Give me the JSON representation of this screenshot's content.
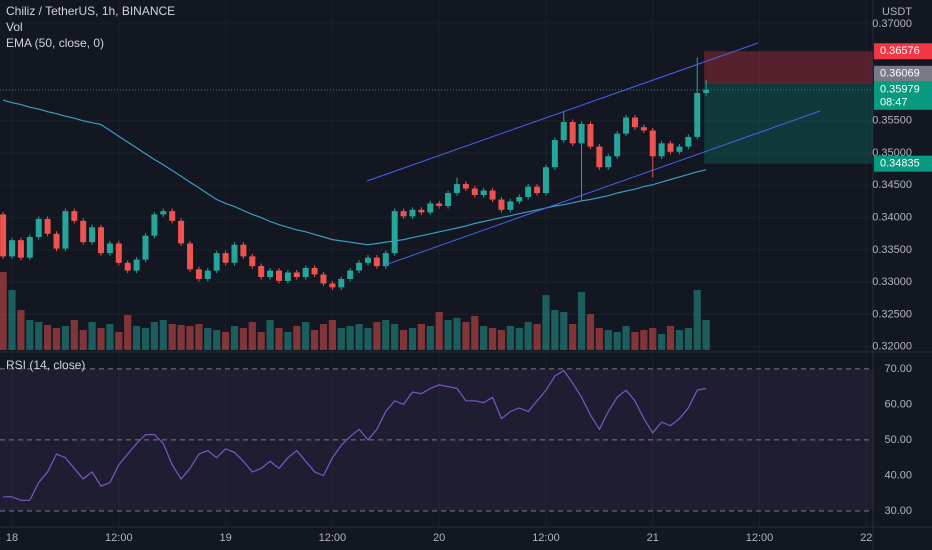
{
  "chart_data": [
    {
      "type": "candlestick",
      "title": "Chiliz / TetherUS, 1h, BINANCE",
      "currency": "USDT",
      "x": [
        -1,
        0,
        1,
        2,
        3,
        4,
        5,
        6,
        7,
        8,
        9,
        10,
        11,
        12,
        13,
        14,
        15,
        16,
        17,
        18,
        19,
        20,
        21,
        22,
        23,
        24,
        25,
        26,
        27,
        28,
        29,
        30,
        31,
        32,
        33,
        34,
        35,
        36,
        37,
        38,
        39,
        40,
        41,
        42,
        43,
        44,
        45,
        46,
        47,
        48,
        49,
        50,
        51,
        52,
        53,
        54,
        55,
        56,
        57,
        58,
        59,
        60,
        61,
        62,
        63,
        64,
        65,
        66,
        67,
        68,
        69,
        70,
        71,
        72,
        73,
        74,
        75,
        76,
        77,
        78
      ],
      "open": [
        0.3405,
        0.334,
        0.3365,
        0.3338,
        0.337,
        0.3398,
        0.3375,
        0.3352,
        0.341,
        0.3395,
        0.3362,
        0.3385,
        0.3345,
        0.336,
        0.333,
        0.3318,
        0.3335,
        0.3372,
        0.3405,
        0.341,
        0.3395,
        0.336,
        0.332,
        0.3305,
        0.3318,
        0.3345,
        0.333,
        0.3358,
        0.334,
        0.3325,
        0.3308,
        0.3318,
        0.3302,
        0.3315,
        0.3308,
        0.3322,
        0.3312,
        0.3298,
        0.3292,
        0.3305,
        0.3318,
        0.333,
        0.3338,
        0.3325,
        0.3345,
        0.341,
        0.3402,
        0.3412,
        0.3408,
        0.3422,
        0.3418,
        0.3438,
        0.3452,
        0.3445,
        0.3435,
        0.3442,
        0.3428,
        0.3412,
        0.3425,
        0.3432,
        0.3448,
        0.3438,
        0.3478,
        0.352,
        0.3548,
        0.3515,
        0.3545,
        0.351,
        0.3478,
        0.3495,
        0.353,
        0.3555,
        0.354,
        0.3535,
        0.3495,
        0.3515,
        0.3502,
        0.351,
        0.3525,
        0.3593
      ],
      "high": [
        0.3409,
        0.3369,
        0.3369,
        0.3374,
        0.3402,
        0.3402,
        0.3379,
        0.3414,
        0.3414,
        0.3399,
        0.3389,
        0.3389,
        0.3364,
        0.3364,
        0.3334,
        0.3339,
        0.3376,
        0.3409,
        0.3414,
        0.3414,
        0.3399,
        0.3364,
        0.3324,
        0.3322,
        0.3349,
        0.3349,
        0.3362,
        0.3362,
        0.3344,
        0.3329,
        0.3322,
        0.3322,
        0.3319,
        0.3319,
        0.3326,
        0.3326,
        0.3316,
        0.3302,
        0.3309,
        0.3322,
        0.3334,
        0.3342,
        0.3342,
        0.3349,
        0.3414,
        0.3414,
        0.3416,
        0.3416,
        0.3426,
        0.3426,
        0.3442,
        0.3462,
        0.3456,
        0.3449,
        0.3446,
        0.3446,
        0.3432,
        0.3429,
        0.3436,
        0.3452,
        0.3452,
        0.3482,
        0.3524,
        0.3565,
        0.3552,
        0.3549,
        0.3549,
        0.3514,
        0.3499,
        0.3534,
        0.3559,
        0.3559,
        0.3544,
        0.3539,
        0.3519,
        0.3519,
        0.3514,
        0.3529,
        0.3648,
        0.3613
      ],
      "low": [
        0.3336,
        0.3336,
        0.3334,
        0.3334,
        0.3366,
        0.3371,
        0.3348,
        0.3348,
        0.3391,
        0.3358,
        0.3358,
        0.3341,
        0.3341,
        0.3326,
        0.3314,
        0.3314,
        0.3331,
        0.3368,
        0.3401,
        0.3391,
        0.3356,
        0.3316,
        0.3301,
        0.3301,
        0.3314,
        0.3326,
        0.3326,
        0.3336,
        0.3321,
        0.3304,
        0.3304,
        0.3298,
        0.3298,
        0.3304,
        0.3304,
        0.3308,
        0.3294,
        0.3288,
        0.3288,
        0.3301,
        0.3314,
        0.3326,
        0.3321,
        0.3321,
        0.3341,
        0.3398,
        0.3398,
        0.3404,
        0.3404,
        0.3414,
        0.3414,
        0.3434,
        0.3441,
        0.3431,
        0.3431,
        0.3424,
        0.3408,
        0.3408,
        0.3421,
        0.3428,
        0.3434,
        0.3434,
        0.3474,
        0.3516,
        0.3511,
        0.3425,
        0.3506,
        0.3474,
        0.3474,
        0.3491,
        0.3526,
        0.3536,
        0.3531,
        0.3462,
        0.3491,
        0.3498,
        0.3498,
        0.3506,
        0.3521,
        0.3589
      ],
      "close": [
        0.334,
        0.3365,
        0.3338,
        0.337,
        0.3398,
        0.3375,
        0.3352,
        0.341,
        0.3395,
        0.3362,
        0.3385,
        0.3345,
        0.336,
        0.333,
        0.3318,
        0.3335,
        0.3372,
        0.3405,
        0.341,
        0.3395,
        0.336,
        0.332,
        0.3305,
        0.3318,
        0.3345,
        0.333,
        0.3358,
        0.334,
        0.3325,
        0.3308,
        0.3318,
        0.3302,
        0.3315,
        0.3308,
        0.3322,
        0.3312,
        0.3298,
        0.3292,
        0.3305,
        0.3318,
        0.333,
        0.3338,
        0.3325,
        0.3345,
        0.341,
        0.3402,
        0.3412,
        0.3408,
        0.3422,
        0.3418,
        0.3438,
        0.3452,
        0.3445,
        0.3435,
        0.3442,
        0.3428,
        0.3412,
        0.3425,
        0.3432,
        0.3448,
        0.3438,
        0.3478,
        0.352,
        0.3548,
        0.3515,
        0.3545,
        0.351,
        0.3478,
        0.3495,
        0.353,
        0.3555,
        0.354,
        0.3535,
        0.3495,
        0.3515,
        0.3502,
        0.351,
        0.3525,
        0.3593,
        0.3598
      ],
      "up_color": "#26a69a",
      "down_color": "#ef5350",
      "series": [
        {
          "name": "EMA (50, close, 0)",
          "color": "#3c9dc4",
          "values": [
            0.3582,
            0.3578,
            0.3575,
            0.3571,
            0.3568,
            0.3564,
            0.3561,
            0.3557,
            0.3554,
            0.355,
            0.3547,
            0.3544,
            0.3535,
            0.3526,
            0.3517,
            0.3508,
            0.3499,
            0.349,
            0.3482,
            0.3473,
            0.3464,
            0.3455,
            0.3446,
            0.3437,
            0.3428,
            0.3422,
            0.3417,
            0.3411,
            0.3405,
            0.34,
            0.3394,
            0.3389,
            0.3385,
            0.3381,
            0.3378,
            0.3374,
            0.337,
            0.3366,
            0.3364,
            0.3362,
            0.336,
            0.3358,
            0.336,
            0.3362,
            0.3364,
            0.3366,
            0.3369,
            0.3372,
            0.3375,
            0.3378,
            0.3381,
            0.3384,
            0.3387,
            0.3391,
            0.3394,
            0.3397,
            0.34,
            0.3403,
            0.3406,
            0.3409,
            0.3412,
            0.3415,
            0.3418,
            0.342,
            0.3423,
            0.3426,
            0.3428,
            0.3431,
            0.3434,
            0.3438,
            0.3441,
            0.3444,
            0.3448,
            0.3451,
            0.3455,
            0.3459,
            0.3463,
            0.3467,
            0.3471,
            0.3474
          ]
        }
      ],
      "volume": {
        "name": "Vol",
        "ylim": [
          0,
          350
        ],
        "values": [
          78,
          60,
          40,
          30,
          28,
          25,
          22,
          24,
          30,
          20,
          28,
          22,
          26,
          18,
          35,
          24,
          22,
          28,
          30,
          26,
          25,
          24,
          26,
          22,
          20,
          18,
          24,
          22,
          28,
          18,
          30,
          22,
          18,
          24,
          28,
          20,
          26,
          30,
          22,
          24,
          26,
          22,
          28,
          30,
          26,
          20,
          22,
          26,
          24,
          38,
          30,
          32,
          28,
          34,
          24,
          22,
          20,
          24,
          22,
          28,
          26,
          55,
          40,
          38,
          26,
          58,
          36,
          22,
          20,
          18,
          24,
          18,
          20,
          22,
          16,
          24,
          20,
          22,
          60,
          30
        ]
      },
      "xlim": [
        -1.35,
        96.75
      ],
      "xticks": [
        {
          "value": 0,
          "label": "18"
        },
        {
          "value": 12,
          "label": "12:00"
        },
        {
          "value": 24,
          "label": "19"
        },
        {
          "value": 36,
          "label": "12:00"
        },
        {
          "value": 48,
          "label": "20"
        },
        {
          "value": 60,
          "label": "12:00"
        },
        {
          "value": 72,
          "label": "21"
        },
        {
          "value": 84,
          "label": "12:00"
        },
        {
          "value": 96,
          "label": "22"
        }
      ],
      "ylim": [
        0.3195,
        0.3737
      ],
      "yticks": [
        {
          "value": 0.32,
          "label": "0.32000"
        },
        {
          "value": 0.325,
          "label": "0.32500"
        },
        {
          "value": 0.33,
          "label": "0.33000"
        },
        {
          "value": 0.335,
          "label": "0.33500"
        },
        {
          "value": 0.34,
          "label": "0.34000"
        },
        {
          "value": 0.345,
          "label": "0.34500"
        },
        {
          "value": 0.35,
          "label": "0.35000"
        },
        {
          "value": 0.355,
          "label": "0.35500"
        },
        {
          "value": 0.37,
          "label": "0.37000"
        }
      ],
      "price_labels": [
        {
          "value": 0.36576,
          "color": "#f23645"
        },
        {
          "value": 0.36069,
          "color": "#787b86"
        },
        {
          "value": 0.35979,
          "color": "#089981",
          "countdown": "08:47"
        },
        {
          "value": 0.34835,
          "color": "#089981"
        }
      ]
    },
    {
      "type": "line",
      "x": [
        -1,
        0,
        1,
        2,
        3,
        4,
        5,
        6,
        7,
        8,
        9,
        10,
        11,
        12,
        13,
        14,
        15,
        16,
        17,
        18,
        19,
        20,
        21,
        22,
        23,
        24,
        25,
        26,
        27,
        28,
        29,
        30,
        31,
        32,
        33,
        34,
        35,
        36,
        37,
        38,
        39,
        40,
        41,
        42,
        43,
        44,
        45,
        46,
        47,
        48,
        49,
        50,
        51,
        52,
        53,
        54,
        55,
        56,
        57,
        58,
        59,
        60,
        61,
        62,
        63,
        64,
        65,
        66,
        67,
        68,
        69,
        70,
        71,
        72,
        73,
        74,
        75,
        76,
        77,
        78
      ],
      "series": [
        {
          "name": "RSI (14, close)",
          "color": "#7e57c2",
          "values": [
            34,
            34,
            33,
            33,
            38,
            41,
            46,
            45,
            42,
            39,
            41,
            37,
            38,
            43,
            46,
            49,
            51.5,
            51.5,
            49,
            43,
            39,
            42,
            46,
            47,
            45,
            47.5,
            46.5,
            44,
            41,
            42,
            44,
            42,
            45,
            47,
            44,
            41,
            40,
            45,
            48.5,
            51,
            53,
            50,
            53,
            58,
            61,
            60,
            63.5,
            63,
            64.5,
            65.5,
            65,
            64.5,
            61,
            61,
            60.5,
            62,
            56,
            58,
            59,
            58,
            61,
            64,
            68,
            69.5,
            66,
            62,
            57,
            53,
            58,
            62,
            64,
            61,
            56,
            52,
            55,
            54,
            56,
            59,
            64,
            64.5
          ]
        }
      ],
      "ylim": [
        25.5,
        73.9
      ],
      "yticks": [
        {
          "value": 30,
          "label": "30.00"
        },
        {
          "value": 40,
          "label": "40.00"
        },
        {
          "value": 50,
          "label": "50.00"
        },
        {
          "value": 60,
          "label": "60.00"
        },
        {
          "value": 70,
          "label": "70.00"
        }
      ],
      "levels": [
        70,
        50,
        30
      ]
    }
  ]
}
